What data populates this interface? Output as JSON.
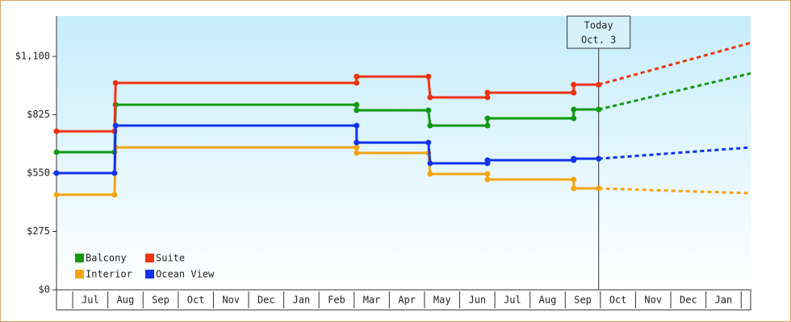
{
  "chart_data": {
    "type": "step-line",
    "categories": [
      "Jul",
      "Aug",
      "Sep",
      "Oct",
      "Nov",
      "Dec",
      "Jan",
      "Feb",
      "Mar",
      "Apr",
      "May",
      "Jun",
      "Jul",
      "Aug",
      "Sep",
      "Oct",
      "Nov",
      "Dec",
      "Jan"
    ],
    "xlim": [
      -0.46,
      19.27
    ],
    "ylim": [
      0,
      1290
    ],
    "yticks": [
      0,
      {
        "value": 275,
        "label": "$275"
      },
      {
        "value": 550,
        "label": "$550"
      },
      {
        "value": 825,
        "label": "$825"
      },
      {
        "value": 1100,
        "label": "$1,100"
      }
    ],
    "ytick0_label": "$0",
    "today": {
      "x": 14.95,
      "label": "Today",
      "date": "Oct. 3"
    },
    "series": [
      {
        "name": "Balcony",
        "color": "#119911",
        "x": [
          -0.46,
          1.19,
          1.22,
          8.07,
          8.07,
          10.11,
          10.16,
          11.79,
          11.79,
          14.24,
          14.24,
          14.95
        ],
        "values": [
          649,
          649,
          872,
          872,
          846,
          846,
          774,
          774,
          808,
          808,
          850,
          850
        ],
        "projection": {
          "x": [
            19.27
          ],
          "values": [
            1020
          ]
        }
      },
      {
        "name": "Suite",
        "color": "#ee3311",
        "x": [
          -0.46,
          1.19,
          1.22,
          8.07,
          8.07,
          10.11,
          10.16,
          11.79,
          11.79,
          14.24,
          14.24,
          14.95
        ],
        "values": [
          747,
          747,
          975,
          975,
          1005,
          1005,
          907,
          907,
          929,
          929,
          967,
          967
        ],
        "projection": {
          "x": [
            19.27
          ],
          "values": [
            1164
          ]
        }
      },
      {
        "name": "Interior",
        "color": "#f4a410",
        "x": [
          -0.46,
          1.19,
          1.22,
          8.07,
          8.07,
          10.11,
          10.16,
          11.79,
          11.79,
          14.24,
          14.24,
          14.95
        ],
        "values": [
          448,
          448,
          671,
          671,
          645,
          645,
          546,
          546,
          520,
          520,
          478,
          478
        ],
        "projection": {
          "x": [
            19.27
          ],
          "values": [
            455
          ]
        }
      },
      {
        "name": "Ocean View",
        "color": "#1133ee",
        "x": [
          -0.46,
          1.19,
          1.22,
          8.07,
          8.07,
          10.11,
          10.16,
          11.79,
          11.79,
          14.24,
          14.24,
          14.95
        ],
        "values": [
          550,
          550,
          774,
          774,
          694,
          694,
          596,
          596,
          611,
          611,
          618,
          618
        ],
        "projection": {
          "x": [
            19.27
          ],
          "values": [
            671
          ]
        }
      }
    ]
  }
}
